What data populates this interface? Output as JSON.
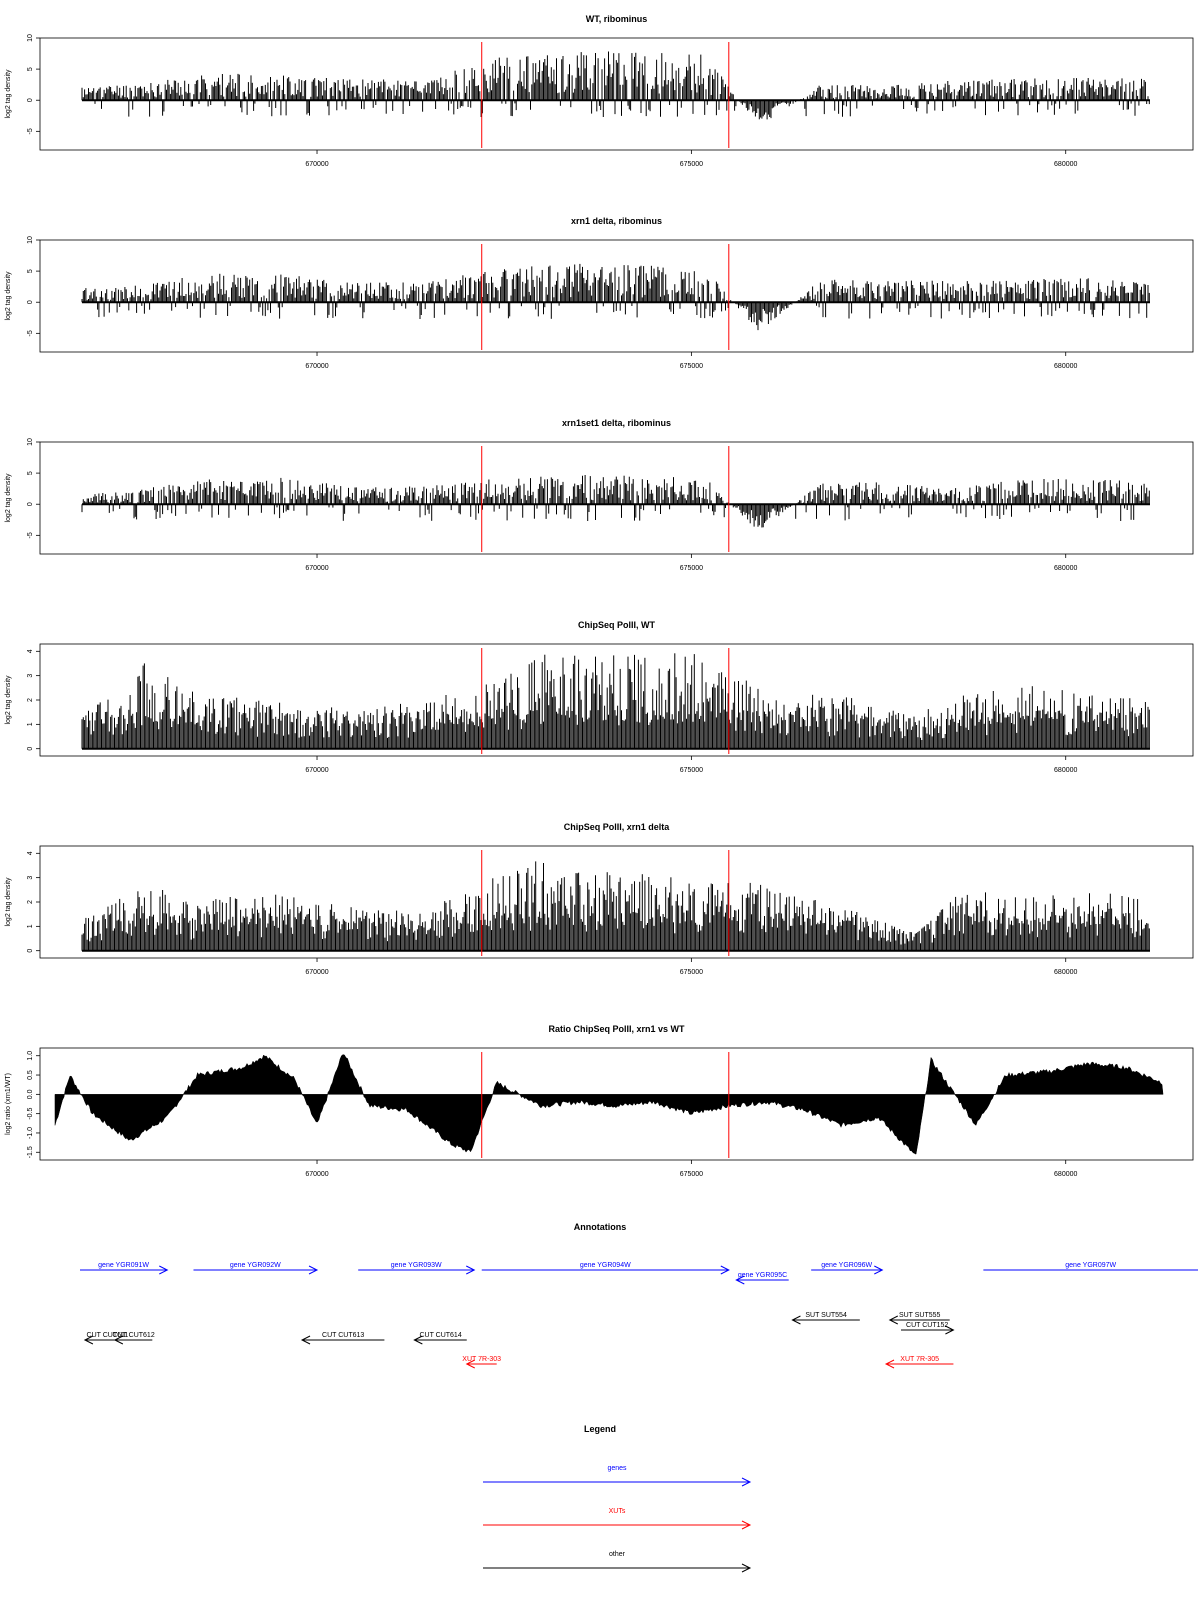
{
  "colors": {
    "gene": "#0000ff",
    "xut": "#ff0000",
    "other": "#000000",
    "marker": "#ff0000",
    "signal": "#000000"
  },
  "chart_data": [
    {
      "type": "bar",
      "title": "WT, ribominus",
      "ylabel": "log2 tag density",
      "ylim": [
        -8,
        10
      ],
      "yticks": [
        "-5",
        "0",
        "5",
        "10"
      ],
      "xticks": [
        "670000",
        "675000",
        "680000"
      ],
      "xlim": [
        666300,
        681700
      ],
      "markers_x": [
        672200,
        675500
      ],
      "series": [
        {
          "values": [
            [
              666500,
              1.6
            ],
            [
              667500,
              2.4
            ],
            [
              668500,
              3.8
            ],
            [
              669500,
              3.6
            ],
            [
              670500,
              2.9
            ],
            [
              671500,
              3.1
            ],
            [
              672500,
              6.2
            ],
            [
              673500,
              6.9
            ],
            [
              674500,
              6.8
            ],
            [
              675200,
              6.6
            ],
            [
              675900,
              -4.2
            ],
            [
              676700,
              2.1
            ],
            [
              677500,
              2.2
            ],
            [
              678500,
              2.8
            ],
            [
              679500,
              3.1
            ],
            [
              680500,
              3.2
            ],
            [
              681400,
              2.9
            ]
          ]
        }
      ]
    },
    {
      "type": "bar",
      "title": "xrn1 delta, ribominus",
      "ylabel": "log2 tag density",
      "ylim": [
        -8,
        10
      ],
      "yticks": [
        "-5",
        "0",
        "5",
        "10"
      ],
      "xticks": [
        "670000",
        "675000",
        "680000"
      ],
      "xlim": [
        666300,
        681700
      ],
      "markers_x": [
        672200,
        675500
      ],
      "series": [
        {
          "values": [
            [
              666500,
              1.8
            ],
            [
              667500,
              2.3
            ],
            [
              668500,
              4.1
            ],
            [
              669500,
              4.0
            ],
            [
              670500,
              2.7
            ],
            [
              671500,
              3.0
            ],
            [
              672500,
              4.8
            ],
            [
              673500,
              5.4
            ],
            [
              674500,
              5.1
            ],
            [
              675200,
              4.9
            ],
            [
              675900,
              -4.8
            ],
            [
              676700,
              3.1
            ],
            [
              677500,
              3.3
            ],
            [
              678500,
              2.9
            ],
            [
              679500,
              3.3
            ],
            [
              680500,
              3.4
            ],
            [
              681400,
              3.1
            ]
          ]
        }
      ]
    },
    {
      "type": "bar",
      "title": "xrn1set1 delta, ribominus",
      "ylabel": "log2 tag density",
      "ylim": [
        -8,
        10
      ],
      "yticks": [
        "-5",
        "0",
        "5",
        "10"
      ],
      "xticks": [
        "670000",
        "675000",
        "680000"
      ],
      "xlim": [
        666300,
        681700
      ],
      "markers_x": [
        672200,
        675500
      ],
      "series": [
        {
          "values": [
            [
              666500,
              1.2
            ],
            [
              667500,
              1.9
            ],
            [
              668500,
              3.6
            ],
            [
              669500,
              3.8
            ],
            [
              670500,
              2.5
            ],
            [
              671500,
              2.6
            ],
            [
              672500,
              3.7
            ],
            [
              673500,
              4.1
            ],
            [
              674500,
              4.0
            ],
            [
              675200,
              3.6
            ],
            [
              675900,
              -4.4
            ],
            [
              676700,
              3.0
            ],
            [
              677500,
              3.1
            ],
            [
              678500,
              2.3
            ],
            [
              679500,
              3.6
            ],
            [
              680500,
              3.5
            ],
            [
              681400,
              2.8
            ]
          ]
        }
      ]
    },
    {
      "type": "bar",
      "title": "ChipSeq PolII, WT",
      "ylabel": "log2 tag density",
      "ylim": [
        -0.3,
        4.3
      ],
      "yticks": [
        "0",
        "1",
        "2",
        "3",
        "4"
      ],
      "xticks": [
        "670000",
        "675000",
        "680000"
      ],
      "xlim": [
        666300,
        681700
      ],
      "markers_x": [
        672200,
        675500
      ],
      "series": [
        {
          "values": [
            [
              666500,
              1.0
            ],
            [
              667300,
              2.0
            ],
            [
              667700,
              3.5
            ],
            [
              668300,
              2.2
            ],
            [
              669300,
              1.8
            ],
            [
              670500,
              1.5
            ],
            [
              671400,
              1.8
            ],
            [
              672500,
              2.6
            ],
            [
              673000,
              3.7
            ],
            [
              674000,
              3.5
            ],
            [
              675000,
              3.6
            ],
            [
              676000,
              2.2
            ],
            [
              677000,
              2.0
            ],
            [
              678000,
              1.3
            ],
            [
              678600,
              2.0
            ],
            [
              679500,
              2.4
            ],
            [
              680500,
              2.0
            ],
            [
              681300,
              1.9
            ]
          ]
        }
      ]
    },
    {
      "type": "bar",
      "title": "ChipSeq PolII, xrn1 delta",
      "ylabel": "log2 tag density",
      "ylim": [
        -0.3,
        4.3
      ],
      "yticks": [
        "0",
        "1",
        "2",
        "3",
        "4"
      ],
      "xticks": [
        "670000",
        "675000",
        "680000"
      ],
      "xlim": [
        666300,
        681700
      ],
      "markers_x": [
        672200,
        675500
      ],
      "series": [
        {
          "values": [
            [
              666500,
              0.6
            ],
            [
              667300,
              1.9
            ],
            [
              667700,
              2.6
            ],
            [
              668300,
              1.8
            ],
            [
              669300,
              2.2
            ],
            [
              670500,
              1.6
            ],
            [
              671400,
              1.5
            ],
            [
              672500,
              3.0
            ],
            [
              673000,
              3.4
            ],
            [
              674000,
              2.9
            ],
            [
              675000,
              2.8
            ],
            [
              676000,
              2.5
            ],
            [
              677000,
              1.7
            ],
            [
              678000,
              0.7
            ],
            [
              678600,
              2.3
            ],
            [
              679500,
              2.0
            ],
            [
              680500,
              2.2
            ],
            [
              681300,
              1.9
            ]
          ]
        }
      ]
    },
    {
      "type": "area",
      "title": "Ratio ChipSeq PolII, xrn1 vs WT",
      "ylabel": "log2 ratio (xrn1/WT)",
      "ylim": [
        -1.7,
        1.2
      ],
      "yticks": [
        "-1.5",
        "-1.0",
        "-0.5",
        "0.0",
        "0.5",
        "1.0"
      ],
      "xticks": [
        "670000",
        "675000",
        "680000"
      ],
      "xlim": [
        666300,
        681700
      ],
      "markers_x": [
        672200,
        675500
      ],
      "series": [
        {
          "values": [
            [
              666500,
              -0.8
            ],
            [
              666700,
              0.5
            ],
            [
              667000,
              -0.5
            ],
            [
              667500,
              -1.2
            ],
            [
              668000,
              -0.6
            ],
            [
              668400,
              0.5
            ],
            [
              669000,
              0.7
            ],
            [
              669300,
              1.0
            ],
            [
              669700,
              0.4
            ],
            [
              670000,
              -0.8
            ],
            [
              670350,
              1.1
            ],
            [
              670700,
              -0.3
            ],
            [
              671200,
              -0.4
            ],
            [
              671800,
              -1.3
            ],
            [
              672050,
              -1.5
            ],
            [
              672400,
              0.3
            ],
            [
              673000,
              -0.3
            ],
            [
              673500,
              -0.2
            ],
            [
              674000,
              -0.3
            ],
            [
              674500,
              -0.2
            ],
            [
              675000,
              -0.5
            ],
            [
              675500,
              -0.3
            ],
            [
              676000,
              -0.2
            ],
            [
              676500,
              -0.4
            ],
            [
              677000,
              -0.8
            ],
            [
              677500,
              -0.6
            ],
            [
              678000,
              -1.6
            ],
            [
              678200,
              0.9
            ],
            [
              678800,
              -0.8
            ],
            [
              679200,
              0.5
            ],
            [
              679800,
              0.6
            ],
            [
              680300,
              0.8
            ],
            [
              680800,
              0.7
            ],
            [
              681300,
              0.3
            ]
          ]
        }
      ]
    }
  ],
  "annotations": {
    "title": "Annotations",
    "genes": [
      {
        "label": "gene YGR091W",
        "start": 666500,
        "end": 668000,
        "dir": "right",
        "row": 0
      },
      {
        "label": "gene YGR092W",
        "start": 668350,
        "end": 670000,
        "dir": "right",
        "row": 0
      },
      {
        "label": "gene YGR093W",
        "start": 670550,
        "end": 672100,
        "dir": "right",
        "row": 0
      },
      {
        "label": "gene YGR094W",
        "start": 672200,
        "end": 675500,
        "dir": "right",
        "row": 0
      },
      {
        "label": "gene YGR095C",
        "start": 675600,
        "end": 676300,
        "dir": "left",
        "row": 1
      },
      {
        "label": "gene YGR096W",
        "start": 676600,
        "end": 677550,
        "dir": "right",
        "row": 0
      },
      {
        "label": "gene YGR097W",
        "start": 678900,
        "end": 682000,
        "dir": "none",
        "row": 0
      }
    ],
    "others": [
      {
        "label": "SUT SUT554",
        "start": 676350,
        "end": 677250,
        "dir": "left",
        "row": 0
      },
      {
        "label": "SUT SUT555",
        "start": 677650,
        "end": 678450,
        "dir": "left",
        "row": 0
      },
      {
        "label": "CUT CUT152",
        "start": 677800,
        "end": 678500,
        "dir": "right",
        "row": 1
      },
      {
        "label": "CUT CUT611",
        "start": 666900,
        "end": 667500,
        "dir": "left",
        "row": 2
      },
      {
        "label": "CUT CUT612",
        "start": 667300,
        "end": 667800,
        "dir": "left",
        "row": 2
      },
      {
        "label": "CUT CUT613",
        "start": 669800,
        "end": 670900,
        "dir": "left",
        "row": 2
      },
      {
        "label": "CUT CUT614",
        "start": 671300,
        "end": 672000,
        "dir": "left",
        "row": 2
      }
    ],
    "xuts": [
      {
        "label": "XUT 7R-303",
        "start": 672000,
        "end": 672400,
        "dir": "left",
        "row": 0
      },
      {
        "label": "XUT 7R-305",
        "start": 677600,
        "end": 678500,
        "dir": "left",
        "row": 0
      }
    ]
  },
  "legend": {
    "title": "Legend",
    "items": [
      {
        "label": "genes",
        "kind": "gene"
      },
      {
        "label": "XUTs",
        "kind": "xut"
      },
      {
        "label": "other",
        "kind": "other"
      }
    ]
  }
}
